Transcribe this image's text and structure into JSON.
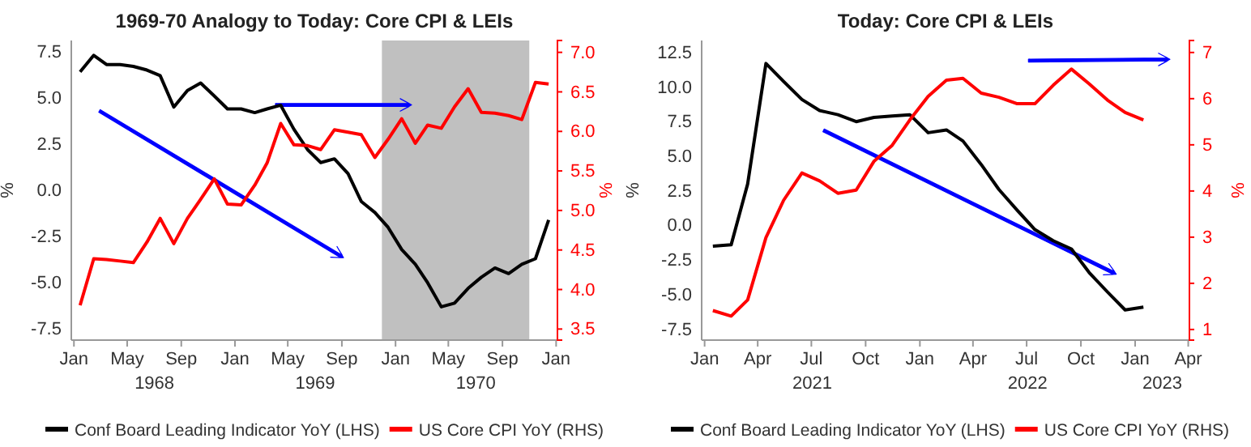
{
  "chart_data": [
    {
      "type": "line",
      "title": "1969-70 Analogy to Today: Core CPI & LEIs",
      "ylabel": "%",
      "y2label": "%",
      "x": [
        "1968-01-15",
        "1968-02-15",
        "1968-03-15",
        "1968-04-15",
        "1968-05-15",
        "1968-06-15",
        "1968-07-15",
        "1968-08-15",
        "1968-09-15",
        "1968-10-15",
        "1968-11-15",
        "1968-12-15",
        "1969-01-15",
        "1969-02-15",
        "1969-03-15",
        "1969-04-15",
        "1969-05-15",
        "1969-06-15",
        "1969-07-15",
        "1969-08-15",
        "1969-09-15",
        "1969-10-15",
        "1969-11-15",
        "1969-12-15",
        "1970-01-15",
        "1970-02-15",
        "1970-03-15",
        "1970-04-15",
        "1970-05-15",
        "1970-06-15",
        "1970-07-15",
        "1970-08-15",
        "1970-09-15",
        "1970-10-15",
        "1970-11-15",
        "1970-12-15"
      ],
      "series": [
        {
          "name": "Conf Board Leading Indicator YoY (LHS)",
          "color": "#000000",
          "values": [
            6.4,
            7.3,
            6.8,
            6.8,
            6.7,
            6.5,
            6.2,
            4.5,
            5.4,
            5.8,
            5.1,
            4.4,
            4.4,
            4.2,
            4.4,
            4.6,
            3.3,
            2.2,
            1.5,
            1.7,
            0.9,
            -0.6,
            -1.2,
            -2.0,
            -3.2,
            -4.0,
            -5.0,
            -6.3,
            -6.1,
            -5.3,
            -4.7,
            -4.2,
            -4.5,
            -4.0,
            -3.7,
            -1.6
          ]
        },
        {
          "name": "US Core CPI YoY (RHS)",
          "color": "#ff0000",
          "axis": "y2",
          "values": [
            3.8,
            4.39,
            4.38,
            4.36,
            4.34,
            4.6,
            4.9,
            4.58,
            4.9,
            5.14,
            5.4,
            5.08,
            5.07,
            5.32,
            5.6,
            6.1,
            5.83,
            5.82,
            5.77,
            6.02,
            5.99,
            5.96,
            5.67,
            5.9,
            6.16,
            5.85,
            6.08,
            6.04,
            6.31,
            6.54,
            6.24,
            6.23,
            6.2,
            6.15,
            6.62,
            6.6
          ]
        }
      ],
      "xlim": [
        "1967-12-26",
        "1971-01-04"
      ],
      "xticks": [
        {
          "value": "1968-01-01",
          "label": "Jan"
        },
        {
          "value": "1968-05-01",
          "label": "May"
        },
        {
          "value": "1968-09-01",
          "label": "Sep"
        },
        {
          "value": "1969-01-01",
          "label": "Jan"
        },
        {
          "value": "1969-05-01",
          "label": "May"
        },
        {
          "value": "1969-09-01",
          "label": "Sep"
        },
        {
          "value": "1970-01-01",
          "label": "Jan"
        },
        {
          "value": "1970-05-01",
          "label": "May"
        },
        {
          "value": "1970-09-01",
          "label": "Sep"
        },
        {
          "value": "1971-01-01",
          "label": "Jan"
        }
      ],
      "ylim": [
        -8.1,
        8.1
      ],
      "yticks": [
        {
          "value": 7.5,
          "label": "7.5"
        },
        {
          "value": 5,
          "label": "5.0"
        },
        {
          "value": 2.5,
          "label": "2.5"
        },
        {
          "value": 0,
          "label": "0.0"
        },
        {
          "value": -2.5,
          "label": "-2.5"
        },
        {
          "value": -5,
          "label": "-5.0"
        },
        {
          "value": -7.5,
          "label": "-7.5"
        }
      ],
      "y2lim": [
        3.36,
        7.15
      ],
      "y2ticks": [
        {
          "value": 3.5,
          "label": "3.5"
        },
        {
          "value": 4,
          "label": "4.0"
        },
        {
          "value": 4.5,
          "label": "4.5"
        },
        {
          "value": 5,
          "label": "5.0"
        },
        {
          "value": 5.5,
          "label": "5.5"
        },
        {
          "value": 6,
          "label": "6.0"
        },
        {
          "value": 6.5,
          "label": "6.5"
        },
        {
          "value": 7,
          "label": "7.0"
        }
      ],
      "bands": [
        {
          "axis": "x",
          "from": "1969-12-01",
          "to": "1970-11-01",
          "color": "#c0c0c0"
        }
      ],
      "annotations": [
        "1968",
        "1969",
        "1970"
      ],
      "grid": false,
      "legend": "bottom"
    },
    {
      "type": "line",
      "title": "Today: Core CPI & LEIs",
      "ylabel": "%",
      "y2label": "%",
      "x": [
        "2021-01-15",
        "2021-02-15",
        "2021-03-15",
        "2021-04-15",
        "2021-05-15",
        "2021-06-15",
        "2021-07-15",
        "2021-08-15",
        "2021-09-15",
        "2021-10-15",
        "2021-11-15",
        "2021-12-15",
        "2022-01-15",
        "2022-02-15",
        "2022-03-15",
        "2022-04-15",
        "2022-05-15",
        "2022-06-15",
        "2022-07-15",
        "2022-08-15",
        "2022-09-15",
        "2022-10-15",
        "2022-11-15",
        "2022-12-15",
        "2023-01-15"
      ],
      "series": [
        {
          "name": "Conf Board Leading Indicator YoY (LHS)",
          "color": "#000000",
          "values": [
            -1.5,
            -1.4,
            3.0,
            11.7,
            10.4,
            9.1,
            8.3,
            8.0,
            7.5,
            7.8,
            7.9,
            8.0,
            6.7,
            6.9,
            6.1,
            4.4,
            2.6,
            1.1,
            -0.3,
            -1.1,
            -1.7,
            -3.4,
            -4.8,
            -6.1,
            -5.9
          ]
        },
        {
          "name": "US Core CPI YoY (RHS)",
          "color": "#ff0000",
          "axis": "y2",
          "values": [
            1.41,
            1.29,
            1.64,
            2.99,
            3.8,
            4.39,
            4.22,
            3.95,
            4.02,
            4.64,
            4.99,
            5.54,
            6.05,
            6.4,
            6.44,
            6.12,
            6.03,
            5.89,
            5.89,
            6.29,
            6.64,
            6.32,
            5.97,
            5.7,
            5.54
          ]
        }
      ],
      "xlim": [
        "2020-12-27",
        "2023-04-03"
      ],
      "xticks": [
        {
          "value": "2021-01-01",
          "label": "Jan"
        },
        {
          "value": "2021-04-01",
          "label": "Apr"
        },
        {
          "value": "2021-07-01",
          "label": "Jul"
        },
        {
          "value": "2021-10-01",
          "label": "Oct"
        },
        {
          "value": "2022-01-01",
          "label": "Jan"
        },
        {
          "value": "2022-04-01",
          "label": "Apr"
        },
        {
          "value": "2022-07-01",
          "label": "Jul"
        },
        {
          "value": "2022-10-01",
          "label": "Oct"
        },
        {
          "value": "2023-01-01",
          "label": "Jan"
        },
        {
          "value": "2023-04-01",
          "label": "Apr"
        }
      ],
      "ylim": [
        -8.28,
        13.36
      ],
      "yticks": [
        {
          "value": 12.5,
          "label": "12.5"
        },
        {
          "value": 10,
          "label": "10.0"
        },
        {
          "value": 7.5,
          "label": "7.5"
        },
        {
          "value": 5,
          "label": "5.0"
        },
        {
          "value": 2.5,
          "label": "2.5"
        },
        {
          "value": 0,
          "label": "0.0"
        },
        {
          "value": -2.5,
          "label": "-2.5"
        },
        {
          "value": -5,
          "label": "-5.0"
        },
        {
          "value": -7.5,
          "label": "-7.5"
        }
      ],
      "y2lim": [
        0.77,
        7.26
      ],
      "y2ticks": [
        1,
        2,
        3,
        4,
        5,
        6,
        7
      ],
      "annotations": [
        "2021",
        "2022",
        "2023"
      ],
      "grid": false,
      "legend": "bottom"
    }
  ]
}
